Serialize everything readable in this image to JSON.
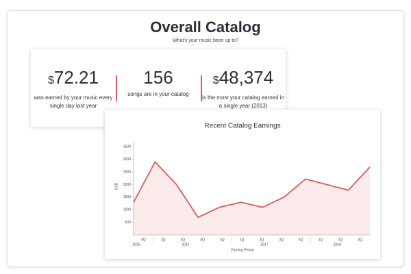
{
  "header": {
    "title": "Overall Catalog",
    "subtitle": "What's your music been up to?"
  },
  "stats": [
    {
      "prefix": "$",
      "value": "72.21",
      "description": "was earned by your music every single day last year"
    },
    {
      "value": "156",
      "description": "songs are in your catalog"
    },
    {
      "prefix": "$",
      "value": "48,374",
      "description": "is the most your catalog earned in a single year (2013)"
    }
  ],
  "chart_data": {
    "type": "area",
    "title": "Recent Catalog Earnings",
    "y_label": "USD",
    "x_label": "Earning Period",
    "categories": [
      "4Q",
      "1Q",
      "2Q",
      "3Q",
      "4Q",
      "1Q",
      "2Q",
      "3Q",
      "4Q",
      "1Q",
      "2Q",
      "3Q"
    ],
    "years": [
      "2015",
      "2016",
      "2017",
      "2018"
    ],
    "values": [
      1300,
      2900,
      2000,
      700,
      1100,
      1300,
      1100,
      1500,
      2220,
      2000,
      1780,
      2700
    ],
    "color": "#e05a57",
    "ylim": [
      0,
      3700
    ],
    "yticks": [
      500,
      1000,
      1500,
      2000,
      2500,
      3000,
      3500
    ]
  }
}
